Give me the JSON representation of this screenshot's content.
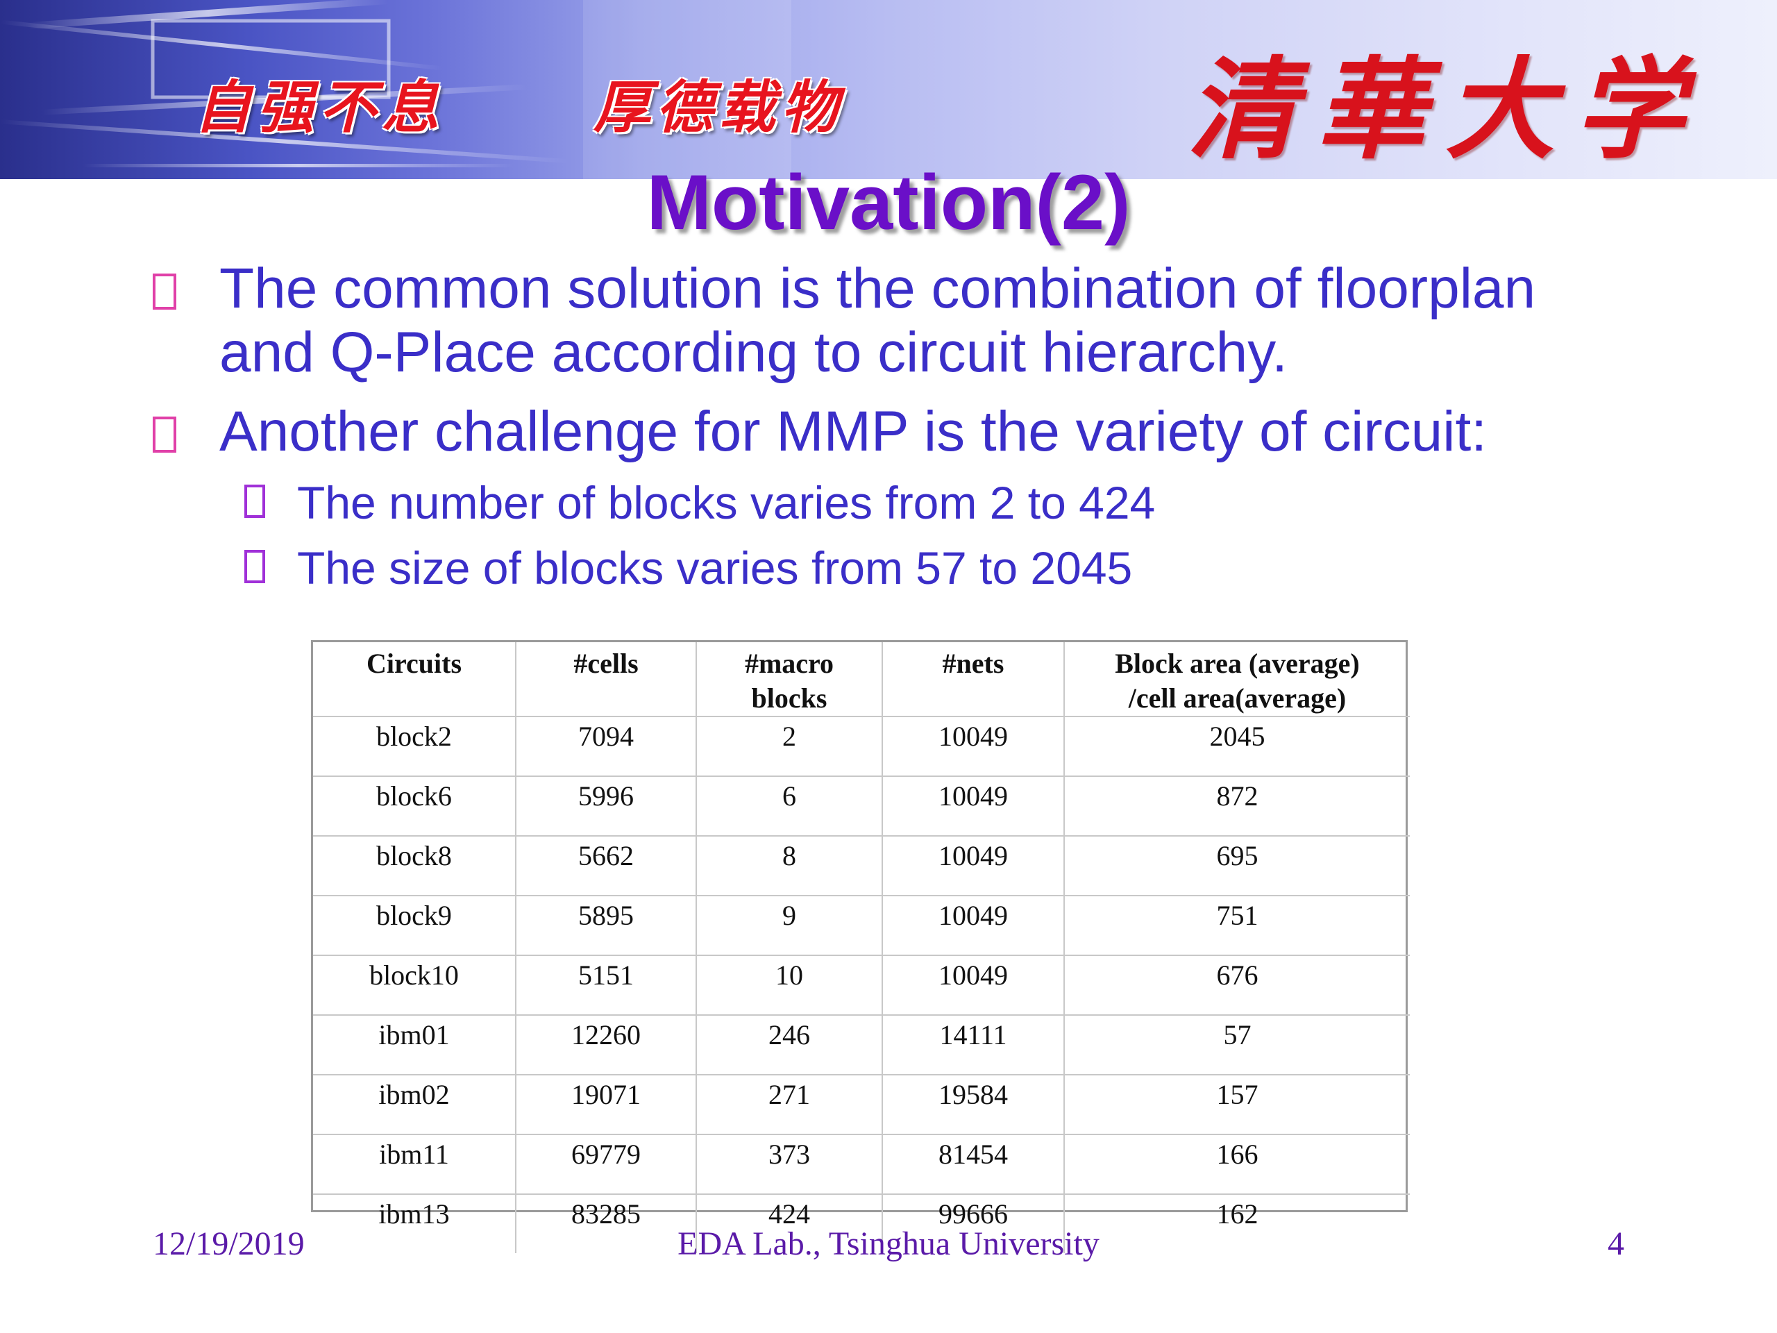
{
  "banner": {
    "motto_left": "自强不息",
    "motto_right": "厚德载物",
    "university_name": "清華大学"
  },
  "slide": {
    "title": "Motivation(2)",
    "bullets": [
      {
        "text": "The common solution is the combination of floorplan and Q-Place according to circuit hierarchy."
      },
      {
        "text": "Another challenge for MMP is the variety of circuit:"
      }
    ],
    "sub_bullets": [
      {
        "text": "The number of blocks varies from 2 to 424"
      },
      {
        "text": "The size of blocks varies from 57 to 2045"
      }
    ]
  },
  "table": {
    "headers": [
      "Circuits",
      "#cells",
      "#macro blocks",
      "#nets",
      "Block area (average) /cell area(average)"
    ],
    "rows": [
      [
        "block2",
        "7094",
        "2",
        "10049",
        "2045"
      ],
      [
        "block6",
        "5996",
        "6",
        "10049",
        "872"
      ],
      [
        "block8",
        "5662",
        "8",
        "10049",
        "695"
      ],
      [
        "block9",
        "5895",
        "9",
        "10049",
        "751"
      ],
      [
        "block10",
        "5151",
        "10",
        "10049",
        "676"
      ],
      [
        "ibm01",
        "12260",
        "246",
        "14111",
        "57"
      ],
      [
        "ibm02",
        "19071",
        "271",
        "19584",
        "157"
      ],
      [
        "ibm11",
        "69779",
        "373",
        "81454",
        "166"
      ],
      [
        "ibm13",
        "83285",
        "424",
        "99666",
        "162"
      ]
    ]
  },
  "footer": {
    "date": "12/19/2019",
    "center": "EDA Lab., Tsinghua University",
    "page": "4"
  },
  "colors": {
    "title": "#6a0fc8",
    "bullet_text": "#3a2ec8",
    "bullet_marker": "#e040a8",
    "banner_calligraphy": "#d8121c",
    "footer_text": "#5a1aa8"
  }
}
